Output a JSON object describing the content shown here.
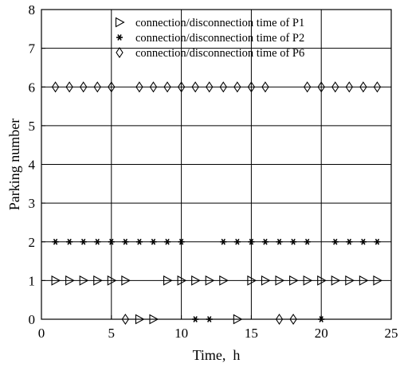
{
  "chart_data": {
    "type": "scatter",
    "xlabel": "Time,  h",
    "ylabel": "Parking number",
    "xlim": [
      0,
      25
    ],
    "ylim": [
      0,
      8
    ],
    "xticks": [
      0,
      5,
      10,
      15,
      20,
      25
    ],
    "yticks": [
      0,
      1,
      2,
      3,
      4,
      5,
      6,
      7,
      8
    ],
    "grid": true,
    "legend_position": "top",
    "series": [
      {
        "name": "connection/disconnection time of P1",
        "marker": "triangle-right",
        "points": [
          [
            1,
            1
          ],
          [
            2,
            1
          ],
          [
            3,
            1
          ],
          [
            4,
            1
          ],
          [
            5,
            1
          ],
          [
            6,
            1
          ],
          [
            9,
            1
          ],
          [
            10,
            1
          ],
          [
            11,
            1
          ],
          [
            12,
            1
          ],
          [
            13,
            1
          ],
          [
            15,
            1
          ],
          [
            16,
            1
          ],
          [
            17,
            1
          ],
          [
            18,
            1
          ],
          [
            19,
            1
          ],
          [
            20,
            1
          ],
          [
            21,
            1
          ],
          [
            22,
            1
          ],
          [
            23,
            1
          ],
          [
            24,
            1
          ],
          [
            7,
            0
          ],
          [
            8,
            0
          ],
          [
            14,
            0
          ]
        ]
      },
      {
        "name": "connection/disconnection time of P2",
        "marker": "asterisk",
        "points": [
          [
            1,
            2
          ],
          [
            2,
            2
          ],
          [
            3,
            2
          ],
          [
            4,
            2
          ],
          [
            5,
            2
          ],
          [
            6,
            2
          ],
          [
            7,
            2
          ],
          [
            8,
            2
          ],
          [
            9,
            2
          ],
          [
            10,
            2
          ],
          [
            13,
            2
          ],
          [
            14,
            2
          ],
          [
            15,
            2
          ],
          [
            16,
            2
          ],
          [
            17,
            2
          ],
          [
            18,
            2
          ],
          [
            19,
            2
          ],
          [
            21,
            2
          ],
          [
            22,
            2
          ],
          [
            23,
            2
          ],
          [
            24,
            2
          ],
          [
            11,
            0
          ],
          [
            12,
            0
          ],
          [
            20,
            0
          ]
        ]
      },
      {
        "name": "connection/disconnection time of P6",
        "marker": "diamond",
        "points": [
          [
            1,
            6
          ],
          [
            2,
            6
          ],
          [
            3,
            6
          ],
          [
            4,
            6
          ],
          [
            5,
            6
          ],
          [
            7,
            6
          ],
          [
            8,
            6
          ],
          [
            9,
            6
          ],
          [
            10,
            6
          ],
          [
            11,
            6
          ],
          [
            12,
            6
          ],
          [
            13,
            6
          ],
          [
            14,
            6
          ],
          [
            15,
            6
          ],
          [
            16,
            6
          ],
          [
            19,
            6
          ],
          [
            20,
            6
          ],
          [
            21,
            6
          ],
          [
            22,
            6
          ],
          [
            23,
            6
          ],
          [
            24,
            6
          ],
          [
            6,
            0
          ],
          [
            17,
            0
          ],
          [
            18,
            0
          ]
        ]
      }
    ]
  }
}
